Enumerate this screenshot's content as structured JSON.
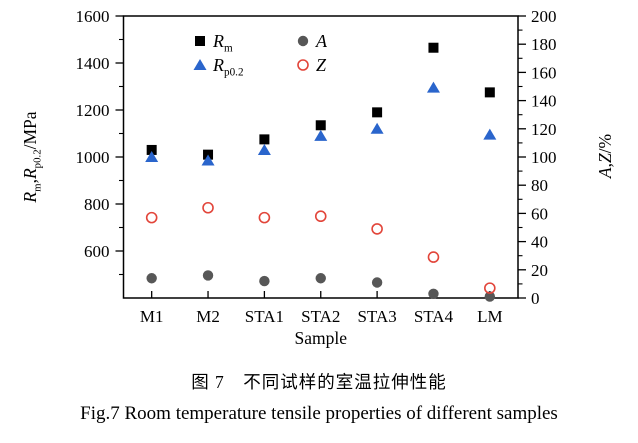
{
  "figure": {
    "caption_zh": "图 7　不同试样的室温拉伸性能",
    "caption_en": "Fig.7  Room temperature tensile properties of different samples"
  },
  "chart_data": {
    "type": "scatter",
    "title": "",
    "xlabel": "Sample",
    "categories": [
      "M1",
      "M2",
      "STA1",
      "STA2",
      "STA3",
      "STA4",
      "LM"
    ],
    "y_left": {
      "label": "Rm,Rp0.2/MPa",
      "label_parts": [
        [
          "R",
          "i"
        ],
        [
          "m",
          "sub"
        ],
        [
          ",",
          ""
        ],
        [
          "R",
          "i"
        ],
        [
          "p0.2",
          "sub"
        ],
        [
          "/MPa",
          ""
        ]
      ],
      "min": 400,
      "max": 1600,
      "tick_start": 600,
      "tick_step": 200,
      "minor_step": 100,
      "tick_labels": [
        "600",
        "800",
        "1000",
        "1200",
        "1400",
        "1600"
      ]
    },
    "y_right": {
      "label": "A,Z/%",
      "label_parts": [
        [
          "A",
          "i"
        ],
        [
          ",",
          ""
        ],
        [
          "Z",
          "i"
        ],
        [
          "/%",
          ""
        ]
      ],
      "min": 0,
      "max": 200,
      "tick_start": 0,
      "tick_step": 20,
      "minor_step": 10,
      "tick_labels": [
        "0",
        "20",
        "40",
        "60",
        "80",
        "100",
        "120",
        "140",
        "160",
        "180",
        "200"
      ]
    },
    "grid": false,
    "legend_position": "top-left-inside",
    "series": [
      {
        "name": "Rm",
        "axis": "left",
        "marker": "square-filled",
        "color": "#000000",
        "values": [
          1030,
          1010,
          1075,
          1135,
          1190,
          1465,
          1275
        ]
      },
      {
        "name": "Rp0.2",
        "axis": "left",
        "marker": "triangle-filled",
        "color": "#2a65cc",
        "values": [
          1000,
          985,
          1030,
          1090,
          1120,
          1295,
          1095
        ]
      },
      {
        "name": "A",
        "axis": "right",
        "marker": "circle-filled",
        "color": "#575757",
        "values": [
          14,
          16,
          12,
          14,
          11,
          3,
          1
        ]
      },
      {
        "name": "Z",
        "axis": "right",
        "marker": "circle-open",
        "color": "#e2453a",
        "values": [
          57,
          64,
          57,
          58,
          49,
          29,
          7
        ]
      }
    ],
    "legend": [
      {
        "series": "Rm",
        "label_parts": [
          [
            "R",
            "i"
          ],
          [
            "m",
            "sub"
          ]
        ]
      },
      {
        "series": "Rp0.2",
        "label_parts": [
          [
            "R",
            "i"
          ],
          [
            "p0.2",
            "sub"
          ]
        ]
      },
      {
        "series": "A",
        "label_parts": [
          [
            "A",
            "i"
          ]
        ]
      },
      {
        "series": "Z",
        "label_parts": [
          [
            "Z",
            "i"
          ]
        ]
      }
    ]
  }
}
